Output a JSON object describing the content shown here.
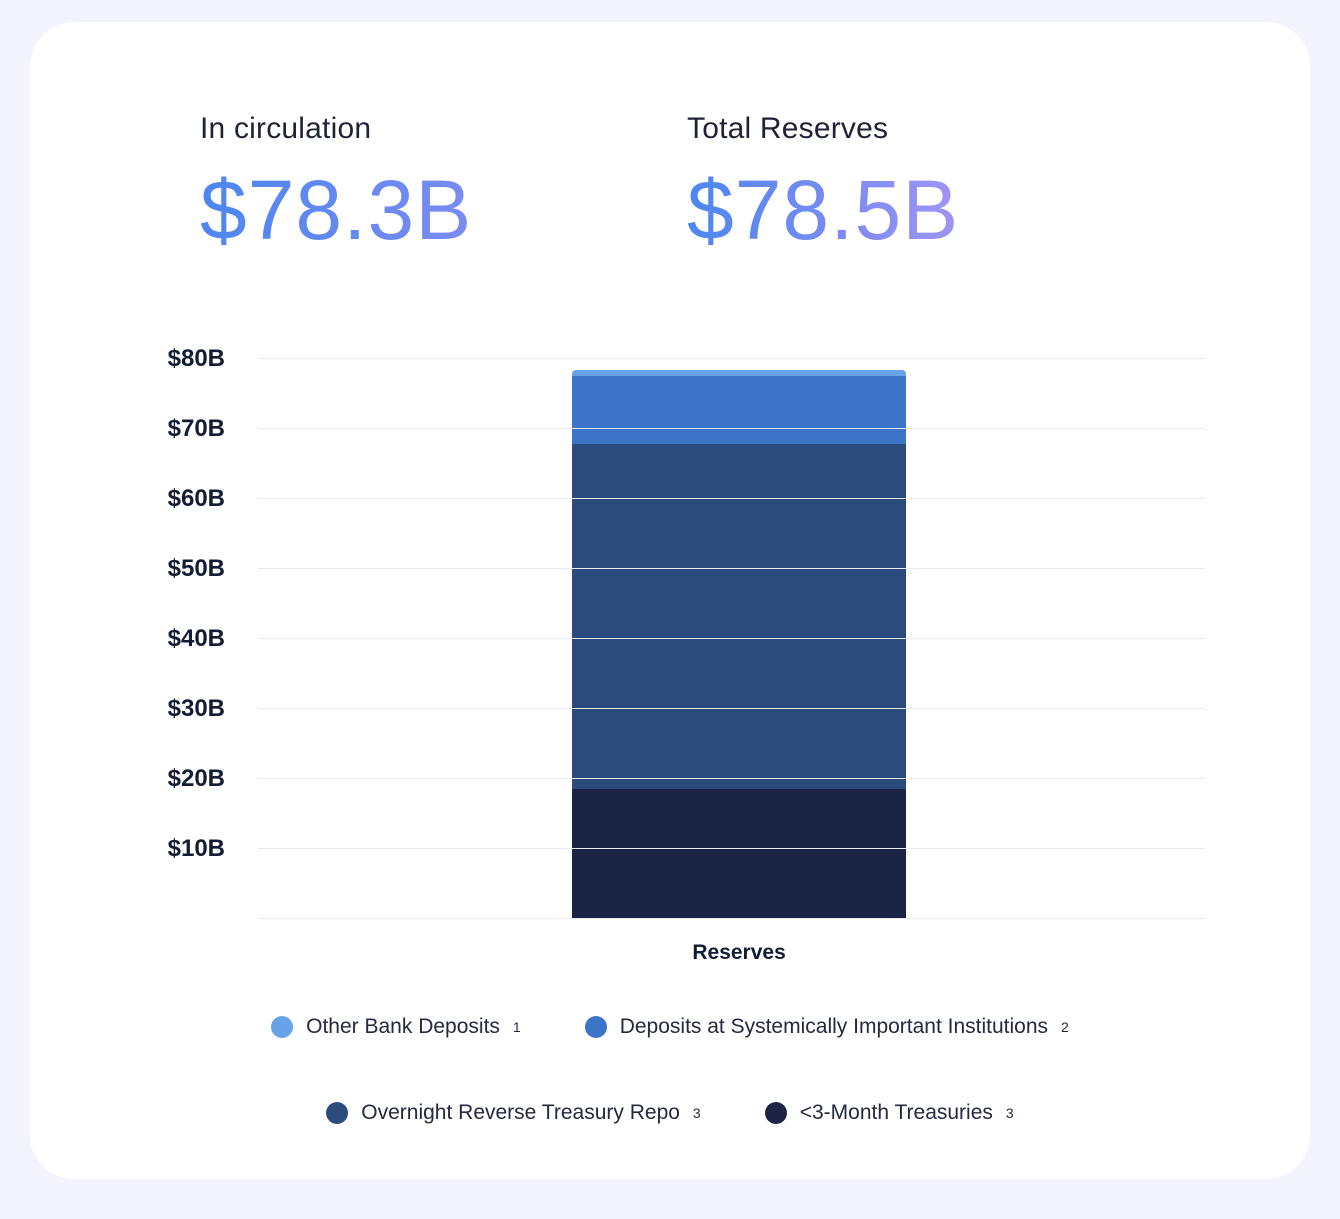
{
  "stats": [
    {
      "label": "In circulation",
      "value": "$78.3B"
    },
    {
      "label": "Total Reserves",
      "value": "$78.5B"
    }
  ],
  "chart_data": {
    "type": "bar",
    "stacked": true,
    "categories": [
      "Reserves"
    ],
    "xlabel": "Reserves",
    "ylabel": "",
    "ylim": [
      0,
      80
    ],
    "grid": true,
    "legend_position": "bottom",
    "yticks": [
      {
        "value": 10,
        "label": "$10B"
      },
      {
        "value": 20,
        "label": "$20B"
      },
      {
        "value": 30,
        "label": "$30B"
      },
      {
        "value": 40,
        "label": "$40B"
      },
      {
        "value": 50,
        "label": "$50B"
      },
      {
        "value": 60,
        "label": "$60B"
      },
      {
        "value": 70,
        "label": "$70B"
      },
      {
        "value": 80,
        "label": "$80B"
      }
    ],
    "series": [
      {
        "name": "<3-Month Treasuries",
        "footnote": "3",
        "color": "#1b2444",
        "values": [
          18.6
        ]
      },
      {
        "name": "Overnight Reverse Treasury Repo",
        "footnote": "3",
        "color": "#2c4b7d",
        "values": [
          49.3
        ]
      },
      {
        "name": "Deposits at Systemically Important Institutions",
        "footnote": "2",
        "color": "#3e74c8",
        "values": [
          9.7
        ]
      },
      {
        "name": "Other Bank Deposits",
        "footnote": "1",
        "color": "#6aa2e8",
        "values": [
          0.9
        ]
      }
    ]
  },
  "legend": {
    "rows": [
      [
        {
          "label": "Other Bank Deposits",
          "footnote": "1",
          "color": "#6aa2e8"
        },
        {
          "label": "Deposits at Systemically Important Institutions",
          "footnote": "2",
          "color": "#3e74c8"
        }
      ],
      [
        {
          "label": "Overnight Reverse Treasury Repo",
          "footnote": "3",
          "color": "#2c4b7d"
        },
        {
          "label": "<3-Month Treasuries",
          "footnote": "3",
          "color": "#1b2444"
        }
      ]
    ]
  },
  "colors": {
    "value_gradient_start": "#4b87ef",
    "value_gradient_end": "#a095f4",
    "page_background": "#f3f4fd",
    "card_background": "#ffffff",
    "gridline": "#e9e9f0"
  }
}
